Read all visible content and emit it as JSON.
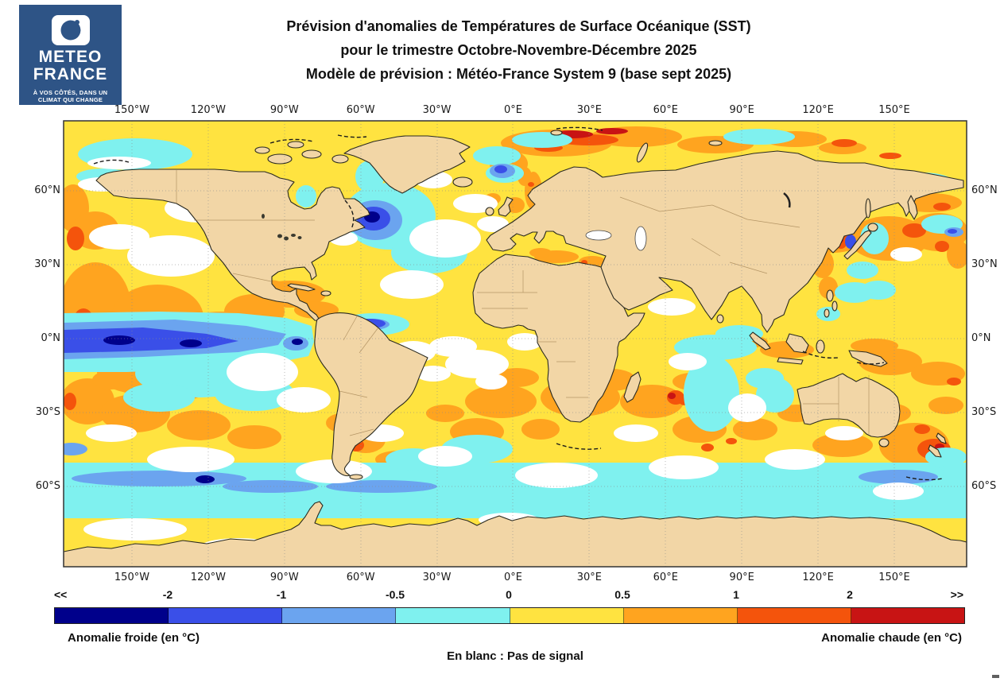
{
  "logo": {
    "bg": "#2E5486",
    "name_line1": "METEO",
    "name_line2": "FRANCE",
    "tagline_line1": "À VOS CÔTÉS, DANS UN",
    "tagline_line2": "CLIMAT QUI CHANGE"
  },
  "title": {
    "line1": "Prévision d'anomalies de Températures de Surface Océanique (SST)",
    "line2": "pour le trimestre Octobre-Novembre-Décembre 2025",
    "line3": "Modèle de prévision : Météo-France System 9 (base sept 2025)"
  },
  "axes": {
    "lon_labels": [
      "150°W",
      "120°W",
      "90°W",
      "60°W",
      "30°W",
      "0°E",
      "30°E",
      "60°E",
      "90°E",
      "120°E",
      "150°E"
    ],
    "lat_labels": [
      "60°N",
      "30°N",
      "0°N",
      "30°S",
      "60°S"
    ]
  },
  "colorbar": {
    "tick_labels": [
      "<<",
      "-2",
      "-1",
      "-0.5",
      "0",
      "0.5",
      "1",
      "2",
      ">>"
    ],
    "segment_colors": [
      "#00008B",
      "#3A4FE8",
      "#6BA4EF",
      "#7FF1EF",
      "#FFE340",
      "#FFA41F",
      "#F4540C",
      "#C81414"
    ],
    "caption_left": "Anomalie froide (en °C)",
    "caption_center": "En blanc : Pas de signal",
    "caption_right": "Anomalie chaude (en °C)",
    "no_signal_color": "#FFFFFF"
  },
  "palette": {
    "land": "#F2D6A6",
    "coastline": "#2A2A20",
    "ocean_base": "#FFE340",
    "cyan": "#7FF1EF",
    "light_blue": "#6BA4EF",
    "blue": "#3A4FE8",
    "navy": "#00008B",
    "amber": "#FFA41F",
    "orange_red": "#F4540C",
    "dark_red": "#C81414",
    "no_signal": "#FFFFFF",
    "grid": "#8C8C8C",
    "frame": "#333333"
  }
}
